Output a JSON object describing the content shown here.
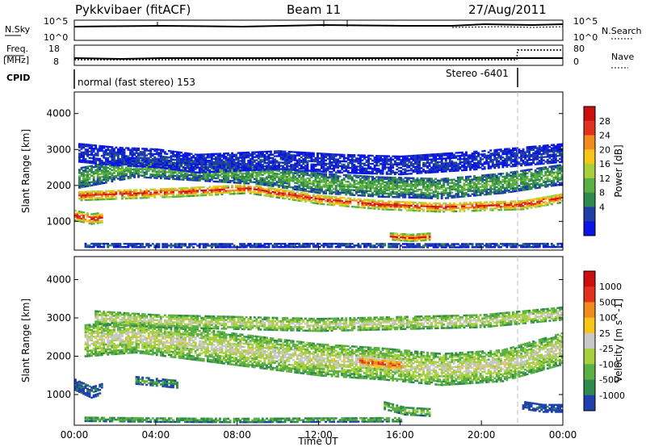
{
  "header": {
    "radar_title": "Pykkvibaer (fitACF)",
    "beam_label": "Beam 11",
    "date_label": "27/Aug/2011"
  },
  "status_panels": {
    "nsky_label": "N.Sky",
    "nsky_ticks": [
      "10^5",
      "10^0"
    ],
    "nsearch_label": "N.Search",
    "nsearch_ticks": [
      "10^5",
      "10^0"
    ],
    "freq_label_1": "Freq.",
    "freq_label_2": "[MHz]",
    "freq_ticks": [
      "18",
      "8"
    ],
    "nave_label": "Nave",
    "nave_ticks": [
      "80",
      "0"
    ],
    "cpid_label": "CPID",
    "mode_text": "normal (fast stereo) 153",
    "stereo_text": "Stereo -6401"
  },
  "chart_data": [
    {
      "type": "heatmap",
      "name": "power-panel",
      "ylabel": "Slant Range [km]",
      "yticks": [
        1000,
        2000,
        3000,
        4000
      ],
      "ylim": [
        200,
        4600
      ],
      "xlim": [
        0,
        24
      ],
      "colorbar_label": "Power [dB]",
      "colorbar_ticks": [
        "28",
        "24",
        "20",
        "16",
        "12",
        "8",
        "4"
      ],
      "colorbar_colors": [
        "#0a14e6",
        "#1f3fa6",
        "#2f8a4e",
        "#5bb043",
        "#a8cf3c",
        "#f5c518",
        "#f08c1e",
        "#e2321e",
        "#cc1010"
      ],
      "bands": [
        {
          "t": [
            0.2,
            5.0,
            8.5,
            12.0,
            15.0,
            18.0,
            22.0,
            24.0
          ],
          "r": [
            1700,
            1800,
            1900,
            1600,
            1450,
            1380,
            1450,
            1650
          ],
          "w": 130,
          "level": 0.9
        },
        {
          "t": [
            0.2,
            3.0,
            6.0,
            9.0,
            12.0,
            15.0,
            18.0,
            21.0,
            24.0
          ],
          "r": [
            2200,
            2500,
            2400,
            2300,
            2050,
            1950,
            1900,
            2050,
            2300
          ],
          "w": 280,
          "level": 0.4
        },
        {
          "t": [
            0.2,
            2.0,
            4.0,
            6.0,
            8.0,
            10.0,
            13.0,
            16.0,
            20.0,
            24.0
          ],
          "r": [
            2900,
            2800,
            2750,
            2600,
            2650,
            2700,
            2600,
            2550,
            2700,
            2900
          ],
          "w": 260,
          "level": 0.15
        },
        {
          "t": [
            15.5,
            16.5,
            17.5
          ],
          "r": [
            560,
            520,
            560
          ],
          "w": 90,
          "level": 0.95
        },
        {
          "t": [
            0.0,
            0.8,
            1.4
          ],
          "r": [
            1150,
            1050,
            1100
          ],
          "w": 140,
          "level": 0.95
        },
        {
          "t": [
            0.5,
            6.0,
            12.0,
            18.0,
            24.0
          ],
          "r": [
            330,
            320,
            330,
            320,
            330
          ],
          "w": 60,
          "level": 0.2
        }
      ]
    },
    {
      "type": "heatmap",
      "name": "velocity-panel",
      "ylabel": "Slant Range [km]",
      "yticks": [
        1000,
        2000,
        3000,
        4000
      ],
      "ylim": [
        200,
        4600
      ],
      "xlim": [
        0,
        24
      ],
      "xticks": [
        "00:00",
        "04:00",
        "08:00",
        "12:00",
        "16:00",
        "20:00",
        "00:00"
      ],
      "xlabel": "Time UT",
      "colorbar_label": "Velocity [m s^-1]",
      "colorbar_ticks": [
        "1000",
        "500",
        "100",
        "25",
        "-25",
        "-100",
        "-500",
        "-1000"
      ],
      "colorbar_colors": [
        "#2040b0",
        "#2f8a4e",
        "#5bb043",
        "#a8cf3c",
        "#c8c8c8",
        "#f5c518",
        "#f08c1e",
        "#e2321e",
        "#cc1010"
      ],
      "bands": [
        {
          "t": [
            0.5,
            3.0,
            6.0,
            9.0,
            12.0,
            15.0,
            18.0,
            21.0,
            24.0
          ],
          "r": [
            2400,
            2500,
            2300,
            2100,
            1900,
            1800,
            1650,
            1750,
            2200
          ],
          "w": 420,
          "level": 0.5
        },
        {
          "t": [
            1.0,
            4.0,
            8.0,
            12.0,
            16.0,
            20.0,
            24.0
          ],
          "r": [
            3000,
            2900,
            2850,
            2800,
            2850,
            2900,
            3100
          ],
          "w": 160,
          "level": 0.5
        },
        {
          "t": [
            14.0,
            15.0,
            16.0
          ],
          "r": [
            1850,
            1800,
            1750
          ],
          "w": 160,
          "level": 0.85
        },
        {
          "t": [
            15.2,
            16.2,
            17.5
          ],
          "r": [
            700,
            560,
            520
          ],
          "w": 100,
          "level": 0.35
        },
        {
          "t": [
            0.0,
            0.8,
            1.4
          ],
          "r": [
            1250,
            1050,
            1150
          ],
          "w": 150,
          "level": 0.1
        },
        {
          "t": [
            3.0,
            4.0,
            5.0
          ],
          "r": [
            1350,
            1300,
            1250
          ],
          "w": 90,
          "level": 0.22
        },
        {
          "t": [
            22.0,
            23.0,
            24.0
          ],
          "r": [
            700,
            620,
            620
          ],
          "w": 90,
          "level": 0.05
        },
        {
          "t": [
            0.5,
            4.0,
            8.0,
            12.0,
            16.0
          ],
          "r": [
            350,
            330,
            320,
            330,
            340
          ],
          "w": 60,
          "level": 0.28
        }
      ]
    }
  ]
}
